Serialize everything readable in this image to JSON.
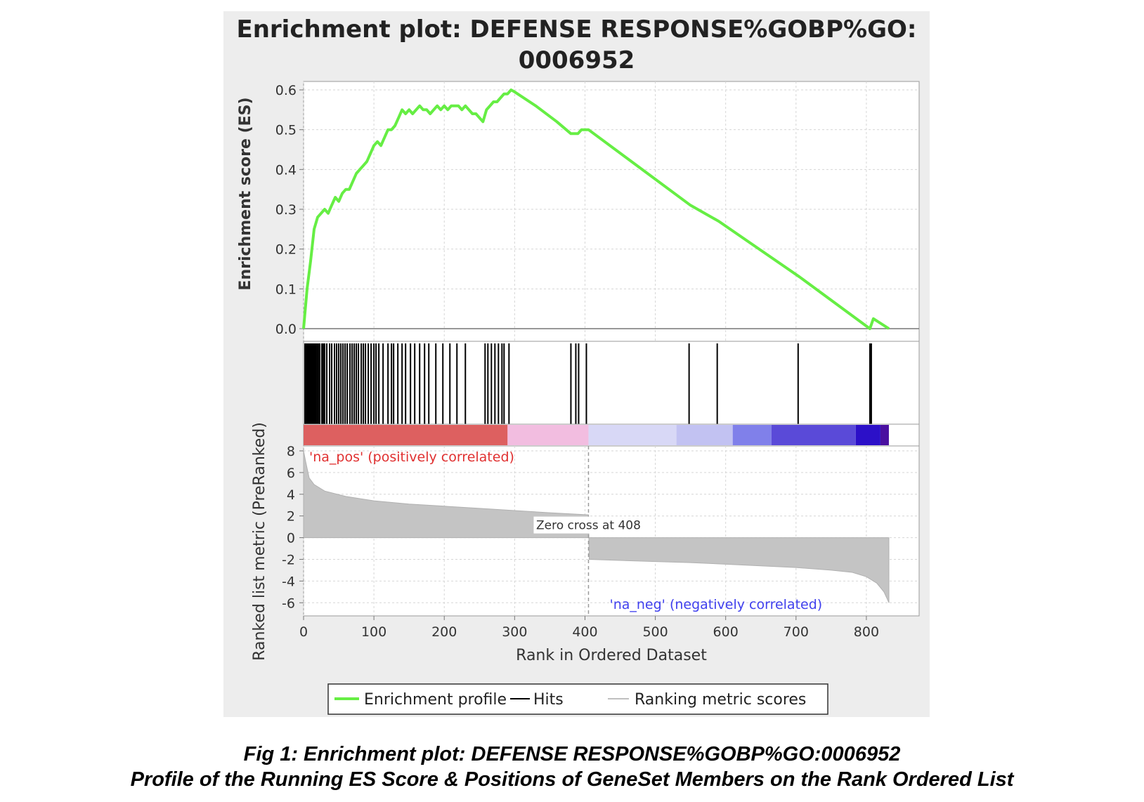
{
  "figure": {
    "title_line1": "Enrichment plot: DEFENSE RESPONSE%GOBP%GO:",
    "title_line2": "0006952"
  },
  "caption": {
    "line1": "Fig 1: Enrichment plot: DEFENSE RESPONSE%GOBP%GO:0006952",
    "line2": "Profile of the Running ES Score & Positions of GeneSet Members on the Rank Ordered List"
  },
  "chart_data": {
    "type": "line",
    "title": "Enrichment plot: DEFENSE RESPONSE%GOBP%GO:0006952",
    "xlabel": "Rank in Ordered Dataset",
    "xlim": [
      0,
      875
    ],
    "xticks": [
      0,
      100,
      200,
      300,
      400,
      500,
      600,
      700,
      800
    ],
    "grid": true,
    "colors": {
      "profile": "#66ee44",
      "hits": "#000000",
      "metric": "#c0c0c0",
      "pos_label": "#e03030",
      "neg_label": "#4040ee"
    },
    "es_panel": {
      "ylabel": "Enrichment score (ES)",
      "ylim": [
        0,
        0.6
      ],
      "yticks": [
        "0.0",
        "0.1",
        "0.2",
        "0.3",
        "0.4",
        "0.5",
        "0.6"
      ],
      "profile": [
        [
          0,
          0.0
        ],
        [
          5,
          0.1
        ],
        [
          10,
          0.17
        ],
        [
          15,
          0.25
        ],
        [
          20,
          0.28
        ],
        [
          25,
          0.29
        ],
        [
          30,
          0.3
        ],
        [
          35,
          0.29
        ],
        [
          40,
          0.31
        ],
        [
          45,
          0.33
        ],
        [
          50,
          0.32
        ],
        [
          55,
          0.34
        ],
        [
          60,
          0.35
        ],
        [
          65,
          0.35
        ],
        [
          70,
          0.37
        ],
        [
          75,
          0.39
        ],
        [
          80,
          0.4
        ],
        [
          85,
          0.41
        ],
        [
          90,
          0.42
        ],
        [
          95,
          0.44
        ],
        [
          100,
          0.46
        ],
        [
          105,
          0.47
        ],
        [
          110,
          0.46
        ],
        [
          115,
          0.48
        ],
        [
          120,
          0.5
        ],
        [
          125,
          0.5
        ],
        [
          130,
          0.51
        ],
        [
          135,
          0.53
        ],
        [
          140,
          0.55
        ],
        [
          145,
          0.54
        ],
        [
          150,
          0.55
        ],
        [
          155,
          0.54
        ],
        [
          160,
          0.55
        ],
        [
          165,
          0.56
        ],
        [
          170,
          0.55
        ],
        [
          175,
          0.55
        ],
        [
          180,
          0.54
        ],
        [
          185,
          0.55
        ],
        [
          190,
          0.56
        ],
        [
          195,
          0.55
        ],
        [
          200,
          0.56
        ],
        [
          205,
          0.55
        ],
        [
          210,
          0.56
        ],
        [
          215,
          0.56
        ],
        [
          220,
          0.56
        ],
        [
          225,
          0.55
        ],
        [
          230,
          0.56
        ],
        [
          235,
          0.55
        ],
        [
          240,
          0.54
        ],
        [
          245,
          0.54
        ],
        [
          250,
          0.53
        ],
        [
          255,
          0.52
        ],
        [
          260,
          0.55
        ],
        [
          265,
          0.56
        ],
        [
          270,
          0.57
        ],
        [
          275,
          0.57
        ],
        [
          280,
          0.58
        ],
        [
          285,
          0.59
        ],
        [
          290,
          0.59
        ],
        [
          295,
          0.6
        ],
        [
          300,
          0.595
        ],
        [
          330,
          0.56
        ],
        [
          360,
          0.52
        ],
        [
          380,
          0.49
        ],
        [
          390,
          0.49
        ],
        [
          395,
          0.5
        ],
        [
          400,
          0.5
        ],
        [
          405,
          0.5
        ],
        [
          550,
          0.31
        ],
        [
          590,
          0.27
        ],
        [
          705,
          0.13
        ],
        [
          805,
          0.0
        ],
        [
          810,
          0.025
        ],
        [
          832,
          0.0
        ]
      ]
    },
    "hits": [
      2,
      3,
      4,
      5,
      6,
      7,
      8,
      9,
      10,
      11,
      12,
      13,
      14,
      15,
      16,
      17,
      19,
      21,
      23,
      26,
      28,
      30,
      33,
      37,
      40,
      44,
      47,
      50,
      53,
      56,
      59,
      62,
      66,
      69,
      72,
      75,
      78,
      82,
      85,
      88,
      92,
      96,
      100,
      103,
      107,
      113,
      120,
      125,
      128,
      134,
      140,
      145,
      152,
      158,
      165,
      172,
      178,
      188,
      198,
      208,
      218,
      230,
      258,
      262,
      267,
      272,
      277,
      282,
      285,
      292,
      380,
      387,
      391,
      402,
      548,
      588,
      703,
      805,
      807
    ],
    "color_bar": [
      {
        "from": 0,
        "to": 290,
        "color": "#dd6060"
      },
      {
        "from": 290,
        "to": 405,
        "color": "#f2bde0"
      },
      {
        "from": 405,
        "to": 530,
        "color": "#d8d8f6"
      },
      {
        "from": 530,
        "to": 610,
        "color": "#c2c2f2"
      },
      {
        "from": 610,
        "to": 665,
        "color": "#8080ea"
      },
      {
        "from": 665,
        "to": 785,
        "color": "#5a4ad8"
      },
      {
        "from": 785,
        "to": 820,
        "color": "#2c10c8"
      },
      {
        "from": 820,
        "to": 832,
        "color": "#4a10a0"
      }
    ],
    "metric_panel": {
      "ylabel": "Ranked list metric (PreRanked)",
      "ylim": [
        -6.5,
        8
      ],
      "yticks": [
        "8",
        "6",
        "4",
        "2",
        "0",
        "-2",
        "-4",
        "-6"
      ],
      "curve": [
        [
          0,
          8.0
        ],
        [
          3,
          7.0
        ],
        [
          8,
          5.5
        ],
        [
          15,
          4.9
        ],
        [
          30,
          4.3
        ],
        [
          60,
          3.8
        ],
        [
          100,
          3.4
        ],
        [
          150,
          3.1
        ],
        [
          200,
          2.9
        ],
        [
          250,
          2.7
        ],
        [
          300,
          2.5
        ],
        [
          350,
          2.3
        ],
        [
          405,
          2.1
        ],
        [
          406,
          -2.0
        ],
        [
          450,
          -2.1
        ],
        [
          500,
          -2.2
        ],
        [
          550,
          -2.3
        ],
        [
          600,
          -2.45
        ],
        [
          650,
          -2.6
        ],
        [
          700,
          -2.75
        ],
        [
          750,
          -3.0
        ],
        [
          780,
          -3.2
        ],
        [
          800,
          -3.6
        ],
        [
          815,
          -4.2
        ],
        [
          825,
          -5.0
        ],
        [
          830,
          -5.7
        ],
        [
          832,
          -6.0
        ]
      ],
      "zero_cross_rank": 408,
      "zero_cross_label": "Zero cross at 408",
      "pos_label": "'na_pos' (positively correlated)",
      "neg_label": "'na_neg' (negatively correlated)"
    },
    "legend": {
      "placement": "bottom",
      "entries": [
        "Enrichment profile",
        "Hits",
        "Ranking metric scores"
      ]
    }
  }
}
